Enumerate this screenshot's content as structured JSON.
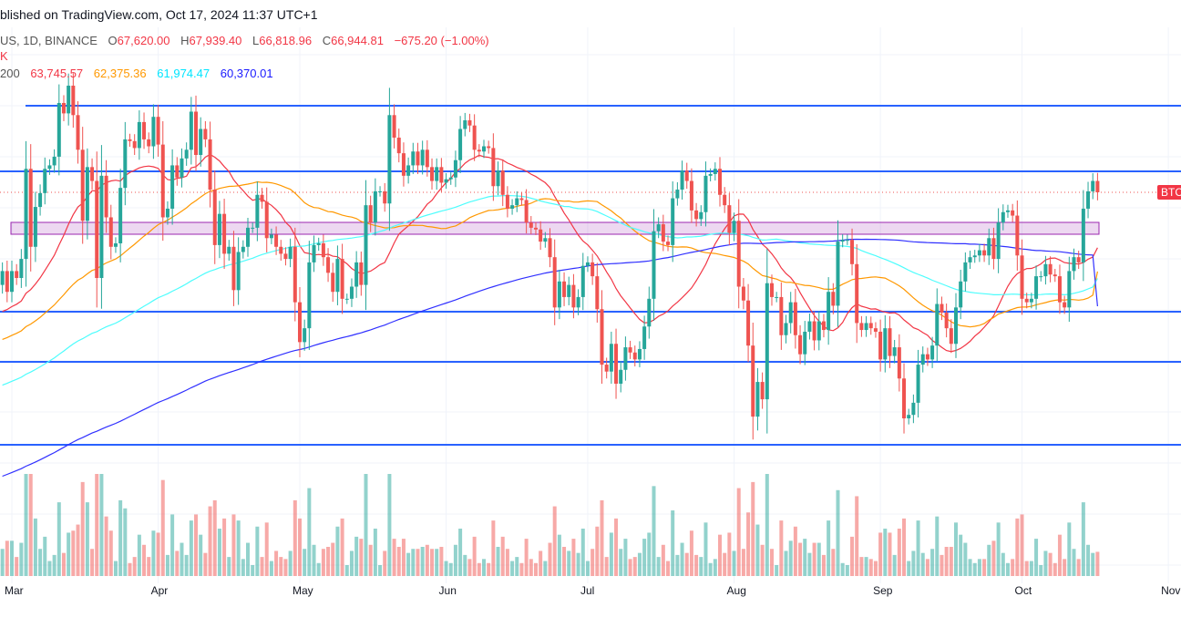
{
  "header": {
    "published": "blished on TradingView.com, Oct 17, 2024 11:37 UTC+1",
    "symbol": "US, 1D, BINANCE",
    "open_label": "O",
    "open": "67,620.00",
    "high_label": "H",
    "high": "67,939.40",
    "low_label": "L",
    "low": "66,818.96",
    "close_label": "C",
    "close": "66,944.81",
    "change": "−675.20 (−1.00%)",
    "vol_label": "K",
    "ma_label": "200",
    "ma_values": [
      "63,745.57",
      "62,375.36",
      "61,974.47",
      "60,370.01"
    ]
  },
  "price_tag": "BTC",
  "colors": {
    "up": "#26a69a",
    "down": "#ef5350",
    "ma20": "#f23645",
    "ma50": "#ff9800",
    "ma100": "#4dfdfd",
    "ma200": "#3030ff",
    "levels": "#2962ff",
    "zone": "#9c27b0"
  },
  "chart_data": {
    "type": "candlestick",
    "start_date": "2024-02-28",
    "last_close": 66944.81,
    "closes": [
      62.4,
      61.2,
      62.4,
      62.0,
      63.1,
      68.3,
      63.8,
      66.1,
      66.9,
      68.3,
      68.5,
      69.0,
      72.1,
      71.5,
      73.1,
      71.4,
      69.4,
      65.3,
      68.4,
      67.6,
      62.0,
      67.9,
      65.5,
      63.8,
      64.0,
      67.2,
      70.0,
      69.9,
      69.5,
      71.0,
      70.0,
      69.6,
      71.3,
      69.7,
      65.5,
      66.0,
      68.5,
      67.8,
      68.9,
      69.4,
      71.6,
      69.1,
      70.6,
      70.0,
      67.1,
      63.9,
      65.7,
      63.4,
      63.8,
      61.3,
      63.5,
      63.8,
      64.9,
      64.9,
      66.8,
      66.4,
      64.3,
      64.5,
      63.8,
      63.4,
      63.1,
      63.8,
      60.6,
      58.3,
      59.1,
      62.9,
      63.9,
      64.0,
      63.2,
      62.3,
      61.2,
      63.1,
      60.8,
      60.8,
      61.5,
      62.9,
      61.6,
      66.2,
      65.2,
      67.0,
      67.0,
      66.3,
      71.4,
      70.1,
      69.2,
      67.9,
      68.5,
      69.3,
      68.5,
      69.4,
      68.4,
      67.6,
      68.4,
      67.5,
      67.7,
      67.8,
      68.8,
      70.6,
      71.1,
      70.8,
      69.4,
      69.3,
      69.6,
      69.5,
      67.3,
      68.2,
      66.8,
      66.0,
      66.2,
      66.6,
      66.5,
      65.2,
      64.9,
      64.8,
      64.1,
      64.3,
      63.2,
      60.3,
      61.8,
      60.9,
      61.6,
      60.3,
      60.9,
      62.7,
      62.9,
      62.1,
      60.2,
      57.0,
      56.6,
      58.2,
      55.9,
      56.7,
      58.0,
      57.7,
      57.3,
      57.9,
      59.2,
      60.8,
      64.7,
      65.1,
      64.1,
      63.9,
      66.6,
      67.1,
      68.2,
      67.6,
      65.9,
      65.4,
      65.8,
      67.9,
      68.0,
      68.3,
      66.8,
      66.2,
      64.6,
      65.3,
      61.5,
      60.7,
      58.1,
      54.0,
      56.0,
      55.0,
      61.7,
      60.9,
      60.9,
      58.7,
      59.4,
      60.6,
      58.7,
      57.6,
      58.9,
      59.5,
      58.4,
      59.5,
      59.0,
      61.2,
      60.4,
      64.1,
      64.2,
      64.2,
      62.8,
      59.4,
      59.0,
      59.4,
      59.1,
      58.9,
      57.3,
      59.1,
      57.5,
      58.0,
      56.2,
      53.9,
      54.1,
      54.8,
      57.0,
      57.6,
      57.3,
      58.1,
      60.5,
      60.0,
      59.1,
      58.2,
      60.3,
      61.8,
      62.9,
      63.2,
      63.3,
      63.6,
      63.3,
      64.3,
      63.1,
      65.2,
      65.8,
      65.9,
      65.6,
      63.3,
      60.8,
      60.6,
      60.8,
      62.1,
      62.1,
      62.8,
      62.2,
      62.1,
      60.6,
      60.3,
      62.4,
      63.2,
      62.9,
      66.0,
      67.0,
      67.6,
      66.9
    ],
    "close_units": "thousand USD",
    "moving_averages": [
      {
        "period": 20,
        "last": 63745.57
      },
      {
        "period": 50,
        "last": 62375.36
      },
      {
        "period": 100,
        "last": 61974.47
      },
      {
        "period": 200,
        "last": 60370.01
      }
    ],
    "horizontal_levels": [
      71940,
      68155,
      60054,
      57160,
      52374
    ],
    "zone": [
      64525,
      65209
    ],
    "x_tick_labels": [
      "Mar",
      "Apr",
      "May",
      "Jun",
      "Jul",
      "Aug",
      "Sep",
      "Oct",
      "Nov"
    ],
    "grid": true
  }
}
